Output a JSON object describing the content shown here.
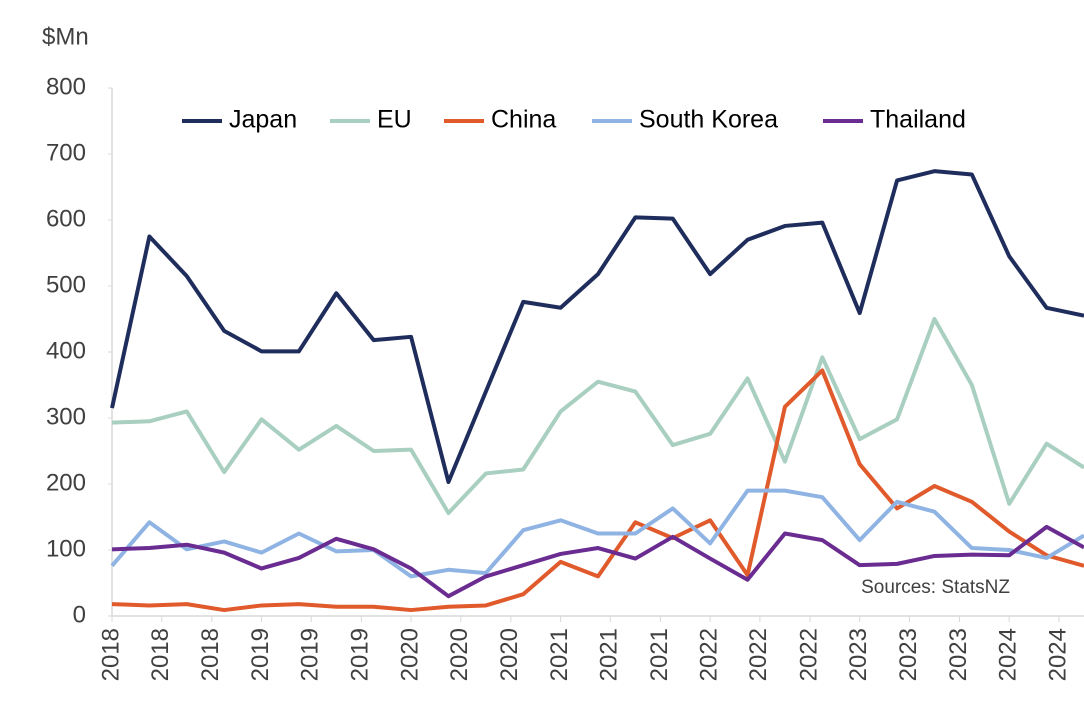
{
  "chart_data": {
    "type": "line",
    "y_label": "$Mn",
    "annotation": "Sources: StatsNZ",
    "x": [
      0,
      1,
      2,
      3,
      4,
      5,
      6,
      7,
      8,
      9,
      10,
      11,
      12,
      13,
      14,
      15,
      16,
      17,
      18,
      19,
      20,
      21,
      22,
      23,
      24,
      25,
      26
    ],
    "xlim": [
      0,
      26
    ],
    "xticks": [
      {
        "value": 0,
        "label": "2018"
      },
      {
        "value": 1.33,
        "label": "2018"
      },
      {
        "value": 2.67,
        "label": "2018"
      },
      {
        "value": 4,
        "label": "2019"
      },
      {
        "value": 5.33,
        "label": "2019"
      },
      {
        "value": 6.67,
        "label": "2019"
      },
      {
        "value": 8,
        "label": "2020"
      },
      {
        "value": 9.33,
        "label": "2020"
      },
      {
        "value": 10.67,
        "label": "2020"
      },
      {
        "value": 12,
        "label": "2021"
      },
      {
        "value": 13.33,
        "label": "2021"
      },
      {
        "value": 14.67,
        "label": "2021"
      },
      {
        "value": 16,
        "label": "2022"
      },
      {
        "value": 17.33,
        "label": "2022"
      },
      {
        "value": 18.67,
        "label": "2022"
      },
      {
        "value": 20,
        "label": "2023"
      },
      {
        "value": 21.33,
        "label": "2023"
      },
      {
        "value": 22.67,
        "label": "2023"
      },
      {
        "value": 24,
        "label": "2024"
      },
      {
        "value": 25.33,
        "label": "2024"
      }
    ],
    "ylim": [
      0,
      800
    ],
    "yticks": [
      0,
      100,
      200,
      300,
      400,
      500,
      600,
      700,
      800
    ],
    "legend": "top",
    "series": [
      {
        "name": "Japan",
        "color": "#1f2d5c",
        "values": [
          315,
          575,
          515,
          432,
          401,
          401,
          489,
          418,
          423,
          203,
          340,
          476,
          467,
          518,
          604,
          602,
          518,
          570,
          591,
          596,
          459,
          660,
          674,
          669,
          545,
          467,
          455
        ]
      },
      {
        "name": "EU",
        "color": "#a9cfc0",
        "values": [
          293,
          295,
          310,
          218,
          298,
          252,
          288,
          250,
          252,
          156,
          216,
          222,
          310,
          355,
          340,
          259,
          276,
          360,
          234,
          392,
          268,
          298,
          450,
          350,
          170,
          261,
          225
        ]
      },
      {
        "name": "China",
        "color": "#e05a2b",
        "values": [
          18,
          16,
          18,
          9,
          16,
          18,
          14,
          14,
          9,
          14,
          16,
          33,
          82,
          60,
          142,
          118,
          145,
          62,
          317,
          372,
          230,
          163,
          197,
          173,
          128,
          92,
          76
        ]
      },
      {
        "name": "South Korea",
        "color": "#8fb4e3",
        "values": [
          76,
          142,
          101,
          113,
          96,
          125,
          98,
          100,
          60,
          70,
          65,
          130,
          145,
          125,
          125,
          163,
          110,
          190,
          190,
          180,
          115,
          173,
          158,
          103,
          100,
          88,
          122
        ]
      },
      {
        "name": "Thailand",
        "color": "#6a2c91",
        "values": [
          101,
          103,
          108,
          96,
          72,
          88,
          117,
          101,
          72,
          30,
          60,
          77,
          94,
          103,
          87,
          120,
          87,
          55,
          125,
          115,
          77,
          79,
          91,
          93,
          92,
          135,
          104
        ]
      }
    ]
  }
}
